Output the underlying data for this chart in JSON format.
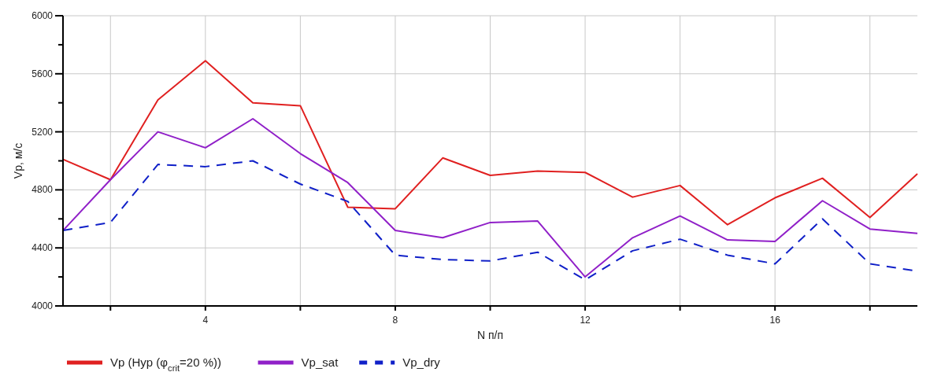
{
  "chart_data": {
    "type": "line",
    "xlabel": "N п/п",
    "ylabel": "Vp, м/с",
    "x": [
      1,
      2,
      3,
      4,
      5,
      6,
      7,
      8,
      9,
      10,
      11,
      12,
      13,
      14,
      15,
      16,
      17,
      18,
      19
    ],
    "xlim": [
      1,
      19
    ],
    "xticks": [
      {
        "value": 2,
        "label": null
      },
      4,
      {
        "value": 6,
        "label": null
      },
      8,
      {
        "value": 10,
        "label": null
      },
      12,
      {
        "value": 14,
        "label": null
      },
      16,
      {
        "value": 18,
        "label": null
      }
    ],
    "ylim": [
      4000,
      6000
    ],
    "yticks": [
      4000,
      {
        "value": 4200,
        "label": null
      },
      4400,
      {
        "value": 4600,
        "label": null
      },
      4800,
      {
        "value": 5000,
        "label": null
      },
      5200,
      {
        "value": 5400,
        "label": null
      },
      5600,
      {
        "value": 5800,
        "label": null
      },
      6000
    ],
    "grid": true,
    "legend": "bottom",
    "marker": "none",
    "series": [
      {
        "name": "Vp (Hyp (φ$_{crit}$=20 %))",
        "color": "#e02020",
        "line_style": "solid",
        "values": [
          5010,
          4870,
          5420,
          5690,
          5400,
          5380,
          4680,
          4670,
          5020,
          4900,
          4930,
          4920,
          4750,
          4830,
          4560,
          4745,
          4880,
          4610,
          4910
        ]
      },
      {
        "name": "Vp_sat",
        "color": "#9020c8",
        "line_style": "solid",
        "values": [
          4520,
          4870,
          5200,
          5090,
          5290,
          5050,
          4850,
          4520,
          4470,
          4575,
          4585,
          4200,
          4470,
          4620,
          4455,
          4445,
          4725,
          4530,
          4500
        ]
      },
      {
        "name": "Vp_dry",
        "color": "#1020c8",
        "line_style": "dashed",
        "values": [
          4520,
          4575,
          4975,
          4960,
          5000,
          4840,
          4720,
          4350,
          4320,
          4310,
          4370,
          4180,
          4380,
          4460,
          4350,
          4290,
          4600,
          4290,
          4240
        ]
      }
    ]
  }
}
